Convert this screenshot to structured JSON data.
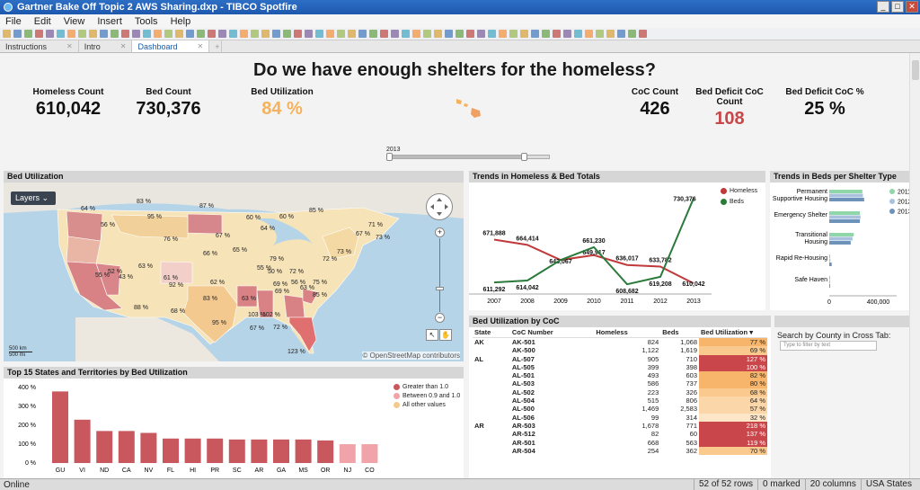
{
  "window": {
    "title": "Gartner Bake Off Topic 2 AWS Sharing.dxp - TIBCO Spotfire"
  },
  "menu": [
    "File",
    "Edit",
    "View",
    "Insert",
    "Tools",
    "Help"
  ],
  "tabs": [
    "Instructions",
    "Intro",
    "Dashboard"
  ],
  "dashboard": {
    "title": "Do we have enough shelters for the homeless?",
    "kpis": {
      "homeless": {
        "label": "Homeless Count",
        "value": "610,042"
      },
      "beds": {
        "label": "Bed Count",
        "value": "730,376"
      },
      "util": {
        "label": "Bed Utilization",
        "value": "84 %"
      },
      "coc": {
        "label": "CoC Count",
        "value": "426"
      },
      "deficit": {
        "label": "Bed Deficit CoC Count",
        "value": "108"
      },
      "deficit_pct": {
        "label": "Bed Deficit CoC %",
        "value": "25 %"
      }
    },
    "slider": {
      "label": "2013"
    }
  },
  "map_panel": {
    "title": "Bed Utilization",
    "layers_label": "Layers",
    "attribution": "© OpenStreetMap contributors",
    "scale": [
      "500 km",
      "500 mi"
    ],
    "labels": [
      "64 %",
      "83 %",
      "87 %",
      "60 %",
      "64 %",
      "56 %",
      "95 %",
      "60 %",
      "76 %",
      "67 %",
      "85 %",
      "71 %",
      "73 %",
      "67 %",
      "65 %",
      "66 %",
      "73 %",
      "72 %",
      "63 %",
      "52 %",
      "55 %",
      "43 %",
      "61 %",
      "92 %",
      "62 %",
      "79 %",
      "55 %",
      "50 %",
      "72 %",
      "56 %",
      "69 %",
      "63 %",
      "83 %",
      "69 %",
      "75 %",
      "85 %",
      "88 %",
      "63 %",
      "68 %",
      "103 %",
      "102 %",
      "95 %",
      "67 %",
      "72 %",
      "123 %"
    ]
  },
  "trend_panel": {
    "title": "Trends in Homeless & Bed Totals",
    "legend": [
      "Homeless",
      "Beds"
    ],
    "colors": {
      "homeless": "#c0393b",
      "beds": "#2a7a3a"
    }
  },
  "chart_data": [
    {
      "type": "line",
      "title": "Trends in Homeless & Bed Totals",
      "x": [
        "2007",
        "2008",
        "2009",
        "2010",
        "2011",
        "2012",
        "2013"
      ],
      "series": [
        {
          "name": "Homeless",
          "values": [
            671888,
            664414,
            643067,
            649917,
            636017,
            633782,
            610042
          ]
        },
        {
          "name": "Beds",
          "values": [
            611292,
            614042,
            643067,
            661230,
            608682,
            619208,
            730376
          ]
        }
      ],
      "data_labels": {
        "Homeless": [
          "671,888",
          "664,414",
          "643,067",
          "649,917",
          "636,017",
          "633,782",
          "610,042"
        ],
        "Beds": [
          "611,292",
          "614,042",
          "",
          "661,230",
          "608,682",
          "619,208",
          "730,376"
        ]
      },
      "ylim": [
        600000,
        740000
      ]
    },
    {
      "type": "bar",
      "orientation": "horizontal",
      "title": "Trends in Beds per Shelter Type",
      "categories": [
        "Permanent Supportive Housing",
        "Emergency Shelter",
        "Transitional Housing",
        "Rapid Re-Housing",
        "Safe Haven"
      ],
      "category_lines": [
        [
          "Permanent",
          "Supportive Housing"
        ],
        [
          "Emergency Shelter"
        ],
        [
          "Transitional",
          "Housing"
        ],
        [
          "Rapid Re-Housing"
        ],
        [
          "Safe Haven"
        ]
      ],
      "series": [
        {
          "name": "2011",
          "values": [
            270000,
            250000,
            200000,
            5000,
            2000
          ]
        },
        {
          "name": "2012",
          "values": [
            275000,
            255000,
            190000,
            9000,
            2000
          ]
        },
        {
          "name": "2013",
          "values": [
            285000,
            250000,
            175000,
            20000,
            2000
          ]
        }
      ],
      "colors": [
        "#8fd6a8",
        "#a9c1dd",
        "#6d93ba"
      ],
      "xticks": [
        "0",
        "400,000"
      ],
      "xlim": [
        0,
        550000
      ]
    },
    {
      "type": "bar",
      "title": "Top 15 States and Territories by Bed Utilization",
      "categories": [
        "GU",
        "VI",
        "ND",
        "CA",
        "NV",
        "FL",
        "HI",
        "PR",
        "SC",
        "AR",
        "GA",
        "MS",
        "OR",
        "NJ",
        "CO"
      ],
      "values": [
        3.8,
        2.3,
        1.7,
        1.7,
        1.6,
        1.3,
        1.3,
        1.3,
        1.25,
        1.25,
        1.25,
        1.25,
        1.2,
        1.0,
        1.0
      ],
      "yticks": [
        "0 %",
        "100 %",
        "200 %",
        "300 %",
        "400 %"
      ],
      "ylim": [
        0,
        4.2
      ],
      "legend": [
        "Greater than 1.0",
        "Between 0.9 and 1.0",
        "All other values"
      ],
      "colors": {
        "high": "#c9585e",
        "mid": "#f0a3a8",
        "other": "#f4c98e"
      }
    }
  ],
  "xtab": {
    "title": "Bed Utilization by CoC",
    "headers": [
      "State",
      "CoC Number",
      "Homeless",
      "Beds",
      "Bed Utilization"
    ],
    "rows": [
      [
        "AK",
        "AK-501",
        "824",
        "1,068",
        "77 %"
      ],
      [
        "",
        "AK-500",
        "1,122",
        "1,619",
        "69 %"
      ],
      [
        "AL",
        "AL-507",
        "905",
        "710",
        "127 %"
      ],
      [
        "",
        "AL-505",
        "399",
        "398",
        "100 %"
      ],
      [
        "",
        "AL-501",
        "493",
        "603",
        "82 %"
      ],
      [
        "",
        "AL-503",
        "586",
        "737",
        "80 %"
      ],
      [
        "",
        "AL-502",
        "223",
        "326",
        "68 %"
      ],
      [
        "",
        "AL-504",
        "515",
        "806",
        "64 %"
      ],
      [
        "",
        "AL-500",
        "1,469",
        "2,583",
        "57 %"
      ],
      [
        "",
        "AL-506",
        "99",
        "314",
        "32 %"
      ],
      [
        "AR",
        "AR-503",
        "1,678",
        "771",
        "218 %"
      ],
      [
        "",
        "AR-512",
        "82",
        "60",
        "137 %"
      ],
      [
        "",
        "AR-501",
        "668",
        "563",
        "119 %"
      ],
      [
        "",
        "AR-504",
        "254",
        "362",
        "70 %"
      ]
    ],
    "row_colors": [
      "#f7b56b",
      "#f9c98e",
      "#c9474b",
      "#c9474b",
      "#f7b56b",
      "#f7b56b",
      "#f9c98e",
      "#fad6a8",
      "#fad6a8",
      "#fde6c8",
      "#c9474b",
      "#c9474b",
      "#c9474b",
      "#f9c98e"
    ]
  },
  "filter": {
    "title": "",
    "label": "Search by County in Cross Tab:",
    "placeholder": "Type to filter by text"
  },
  "status": {
    "left": "Online",
    "right": [
      "52 of 52 rows",
      "0 marked",
      "20 columns",
      "USA States"
    ]
  }
}
